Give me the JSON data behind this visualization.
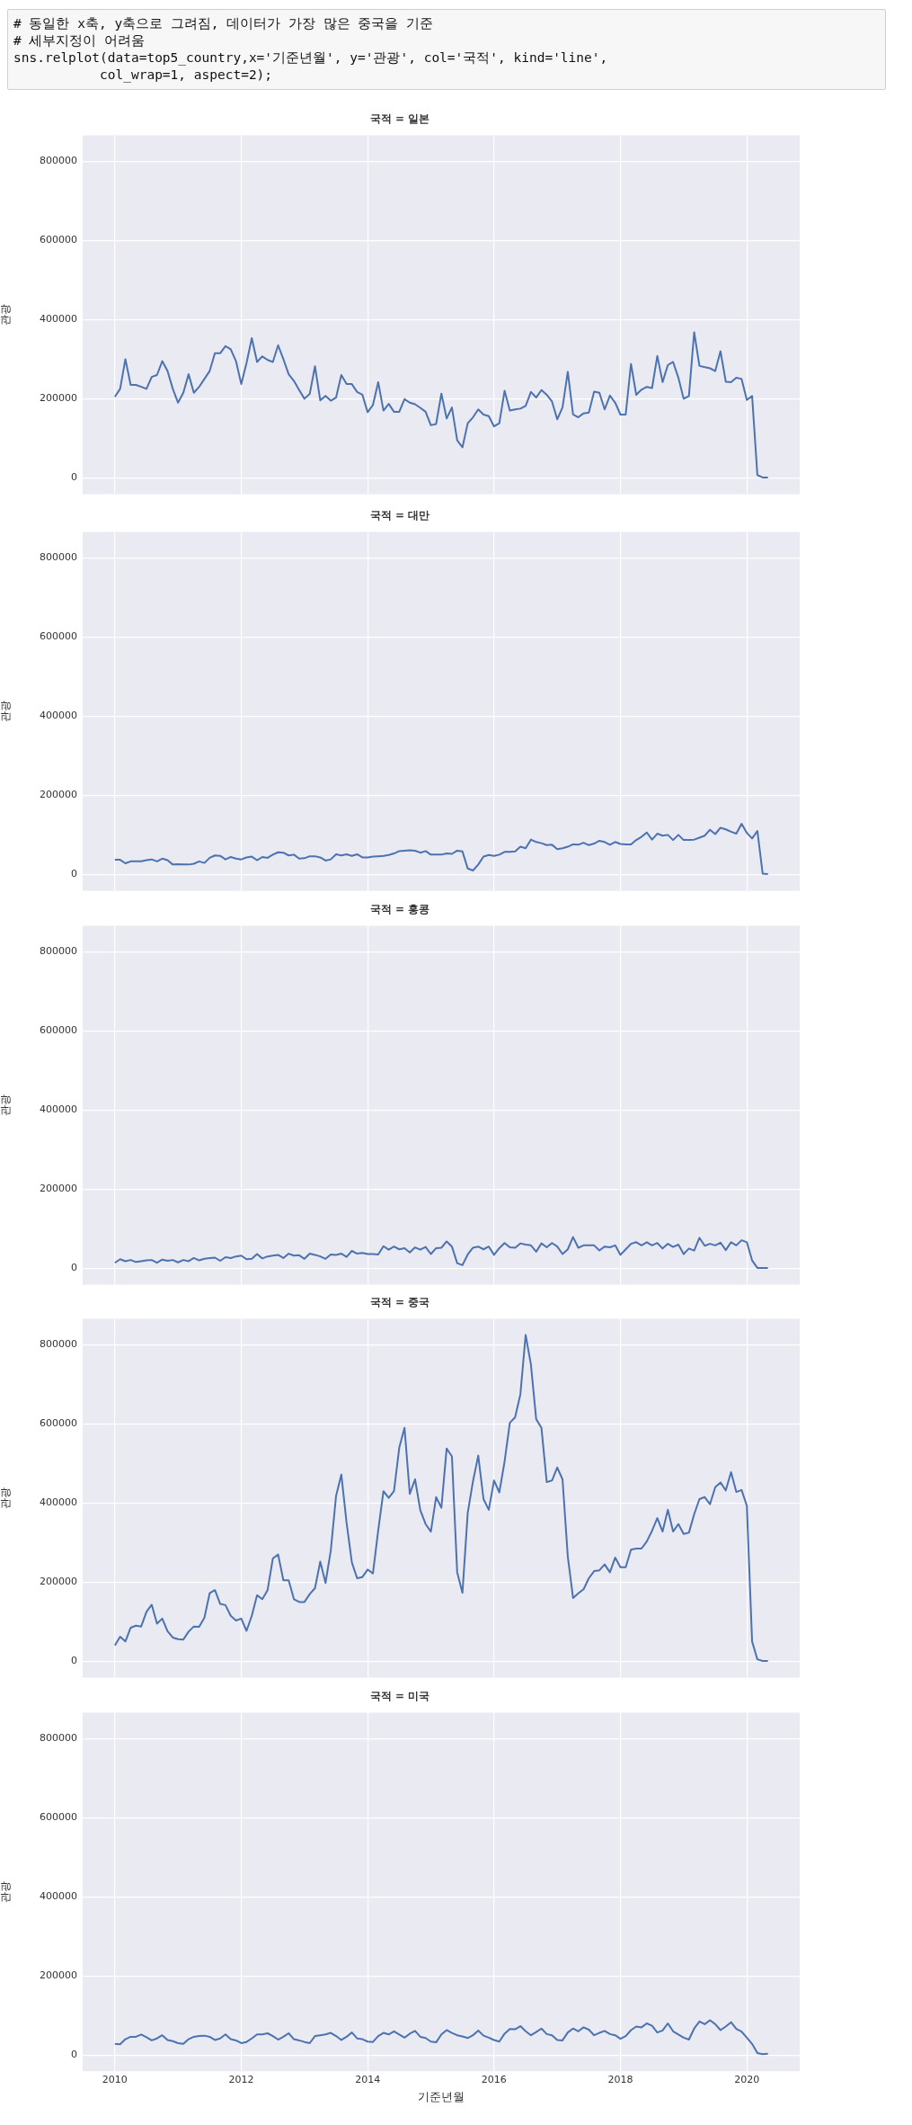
{
  "chart_data": [
    {
      "type": "line",
      "title": "국적 = 일본",
      "ylabel": "관광",
      "annotations": [
        "# 동일한 x축, y축으로 그려짐, 데이터가 가장 많은 중국을 기준",
        "# 세부지정이 어려움",
        "sns.relplot(data=top5_country,x='기준년월', y='관광', col='국적', kind='line',",
        "           col_wrap=1, aspect=2);"
      ],
      "x": [
        "2010-01",
        "2010-02",
        "2010-03",
        "2010-04",
        "2010-05",
        "2010-06",
        "2010-07",
        "2010-08",
        "2010-09",
        "2010-10",
        "2010-11",
        "2010-12",
        "2011-01",
        "2011-02",
        "2011-03",
        "2011-04",
        "2011-05",
        "2011-06",
        "2011-07",
        "2011-08",
        "2011-09",
        "2011-10",
        "2011-11",
        "2011-12",
        "2012-01",
        "2012-02",
        "2012-03",
        "2012-04",
        "2012-05",
        "2012-06",
        "2012-07",
        "2012-08",
        "2012-09",
        "2012-10",
        "2012-11",
        "2012-12",
        "2013-01",
        "2013-02",
        "2013-03",
        "2013-04",
        "2013-05",
        "2013-06",
        "2013-07",
        "2013-08",
        "2013-09",
        "2013-10",
        "2013-11",
        "2013-12",
        "2014-01",
        "2014-02",
        "2014-03",
        "2014-04",
        "2014-05",
        "2014-06",
        "2014-07",
        "2014-08",
        "2014-09",
        "2014-10",
        "2014-11",
        "2014-12",
        "2015-01",
        "2015-02",
        "2015-03",
        "2015-04",
        "2015-05",
        "2015-06",
        "2015-07",
        "2015-08",
        "2015-09",
        "2015-10",
        "2015-11",
        "2015-12",
        "2016-01",
        "2016-02",
        "2016-03",
        "2016-04",
        "2016-05",
        "2016-06",
        "2016-07",
        "2016-08",
        "2016-09",
        "2016-10",
        "2016-11",
        "2016-12",
        "2017-01",
        "2017-02",
        "2017-03",
        "2017-04",
        "2017-05",
        "2017-06",
        "2017-07",
        "2017-08",
        "2017-09",
        "2017-10",
        "2017-11",
        "2017-12",
        "2018-01",
        "2018-02",
        "2018-03",
        "2018-04",
        "2018-05",
        "2018-06",
        "2018-07",
        "2018-08",
        "2018-09",
        "2018-10",
        "2018-11",
        "2018-12",
        "2019-01",
        "2019-02",
        "2019-03",
        "2019-04",
        "2019-05",
        "2019-06",
        "2019-07",
        "2019-08",
        "2019-09",
        "2019-10",
        "2019-11",
        "2019-12",
        "2020-01",
        "2020-02",
        "2020-03",
        "2020-04",
        "2020-05"
      ],
      "series": [
        {
          "color": "#4c72b0",
          "values": [
            205000,
            225000,
            300000,
            235000,
            235000,
            230000,
            225000,
            255000,
            260000,
            295000,
            270000,
            225000,
            190000,
            215000,
            262000,
            215000,
            230000,
            250000,
            270000,
            315000,
            315000,
            333000,
            325000,
            295000,
            237000,
            290000,
            353000,
            293000,
            307000,
            298000,
            293000,
            335000,
            300000,
            262000,
            245000,
            222000,
            200000,
            212000,
            282000,
            196000,
            207000,
            195000,
            203000,
            260000,
            237000,
            237000,
            217000,
            210000,
            166000,
            184000,
            242000,
            170000,
            187000,
            167000,
            167000,
            199000,
            190000,
            186000,
            177000,
            167000,
            133000,
            136000,
            213000,
            150000,
            178000,
            95000,
            77000,
            138000,
            153000,
            173000,
            160000,
            156000,
            130000,
            138000,
            220000,
            170000,
            173000,
            175000,
            182000,
            217000,
            203000,
            222000,
            210000,
            193000,
            148000,
            178000,
            268000,
            160000,
            153000,
            163000,
            165000,
            218000,
            215000,
            173000,
            208000,
            190000,
            160000,
            160000,
            288000,
            210000,
            223000,
            230000,
            227000,
            308000,
            242000,
            285000,
            293000,
            253000,
            200000,
            207000,
            368000,
            283000,
            280000,
            277000,
            270000,
            320000,
            243000,
            242000,
            253000,
            250000,
            197000,
            207000,
            7000,
            1000,
            1000
          ]
        }
      ],
      "xlim": [
        "2009-06-28",
        "2020-11-02"
      ],
      "xticks": [
        "2010",
        "2012",
        "2014",
        "2016",
        "2018",
        "2020"
      ],
      "ylim": [
        -41000,
        866000
      ],
      "yticks": [
        0,
        200000,
        400000,
        600000,
        800000
      ],
      "grid": true,
      "tick_labels": "y"
    },
    {
      "type": "line",
      "title": "국적 = 대만",
      "ylabel": "관광",
      "x": [
        "2010-01",
        "2010-02",
        "2010-03",
        "2010-04",
        "2010-05",
        "2010-06",
        "2010-07",
        "2010-08",
        "2010-09",
        "2010-10",
        "2010-11",
        "2010-12",
        "2011-01",
        "2011-02",
        "2011-03",
        "2011-04",
        "2011-05",
        "2011-06",
        "2011-07",
        "2011-08",
        "2011-09",
        "2011-10",
        "2011-11",
        "2011-12",
        "2012-01",
        "2012-02",
        "2012-03",
        "2012-04",
        "2012-05",
        "2012-06",
        "2012-07",
        "2012-08",
        "2012-09",
        "2012-10",
        "2012-11",
        "2012-12",
        "2013-01",
        "2013-02",
        "2013-03",
        "2013-04",
        "2013-05",
        "2013-06",
        "2013-07",
        "2013-08",
        "2013-09",
        "2013-10",
        "2013-11",
        "2013-12",
        "2014-01",
        "2014-02",
        "2014-03",
        "2014-04",
        "2014-05",
        "2014-06",
        "2014-07",
        "2014-08",
        "2014-09",
        "2014-10",
        "2014-11",
        "2014-12",
        "2015-01",
        "2015-02",
        "2015-03",
        "2015-04",
        "2015-05",
        "2015-06",
        "2015-07",
        "2015-08",
        "2015-09",
        "2015-10",
        "2015-11",
        "2015-12",
        "2016-01",
        "2016-02",
        "2016-03",
        "2016-04",
        "2016-05",
        "2016-06",
        "2016-07",
        "2016-08",
        "2016-09",
        "2016-10",
        "2016-11",
        "2016-12",
        "2017-01",
        "2017-02",
        "2017-03",
        "2017-04",
        "2017-05",
        "2017-06",
        "2017-07",
        "2017-08",
        "2017-09",
        "2017-10",
        "2017-11",
        "2017-12",
        "2018-01",
        "2018-02",
        "2018-03",
        "2018-04",
        "2018-05",
        "2018-06",
        "2018-07",
        "2018-08",
        "2018-09",
        "2018-10",
        "2018-11",
        "2018-12",
        "2019-01",
        "2019-02",
        "2019-03",
        "2019-04",
        "2019-05",
        "2019-06",
        "2019-07",
        "2019-08",
        "2019-09",
        "2019-10",
        "2019-11",
        "2019-12",
        "2020-01",
        "2020-02",
        "2020-03",
        "2020-04",
        "2020-05"
      ],
      "series": [
        {
          "color": "#4c72b0",
          "values": [
            37000,
            37000,
            28000,
            33000,
            33000,
            33000,
            36000,
            38000,
            33000,
            40000,
            36000,
            25000,
            26000,
            25000,
            25000,
            27000,
            33000,
            29000,
            42000,
            48000,
            47000,
            38000,
            44000,
            40000,
            38000,
            43000,
            45000,
            36000,
            44000,
            42000,
            50000,
            56000,
            55000,
            48000,
            50000,
            40000,
            41000,
            46000,
            46000,
            43000,
            35000,
            38000,
            51000,
            48000,
            51000,
            47000,
            51000,
            43000,
            43000,
            45000,
            46000,
            47000,
            49000,
            53000,
            59000,
            60000,
            61000,
            60000,
            55000,
            59000,
            50000,
            50000,
            50000,
            53000,
            52000,
            60000,
            58000,
            15000,
            10000,
            25000,
            45000,
            49000,
            47000,
            50000,
            57000,
            57000,
            58000,
            70000,
            66000,
            88000,
            82000,
            79000,
            74000,
            75000,
            64000,
            66000,
            70000,
            76000,
            75000,
            80000,
            74000,
            78000,
            85000,
            82000,
            75000,
            82000,
            77000,
            76000,
            76000,
            87000,
            95000,
            106000,
            88000,
            103000,
            98000,
            100000,
            87000,
            100000,
            87000,
            87000,
            88000,
            93000,
            98000,
            113000,
            102000,
            118000,
            114000,
            108000,
            103000,
            128000,
            105000,
            91000,
            110000,
            2000,
            1000
          ]
        }
      ],
      "xlim": [
        "2009-06-28",
        "2020-11-02"
      ],
      "xticks": [
        "2010",
        "2012",
        "2014",
        "2016",
        "2018",
        "2020"
      ],
      "ylim": [
        -41000,
        866000
      ],
      "yticks": [
        0,
        200000,
        400000,
        600000,
        800000
      ],
      "grid": true,
      "tick_labels": "y"
    },
    {
      "type": "line",
      "title": "국적 = 홍콩",
      "ylabel": "관광",
      "x": [
        "2010-01",
        "2010-02",
        "2010-03",
        "2010-04",
        "2010-05",
        "2010-06",
        "2010-07",
        "2010-08",
        "2010-09",
        "2010-10",
        "2010-11",
        "2010-12",
        "2011-01",
        "2011-02",
        "2011-03",
        "2011-04",
        "2011-05",
        "2011-06",
        "2011-07",
        "2011-08",
        "2011-09",
        "2011-10",
        "2011-11",
        "2011-12",
        "2012-01",
        "2012-02",
        "2012-03",
        "2012-04",
        "2012-05",
        "2012-06",
        "2012-07",
        "2012-08",
        "2012-09",
        "2012-10",
        "2012-11",
        "2012-12",
        "2013-01",
        "2013-02",
        "2013-03",
        "2013-04",
        "2013-05",
        "2013-06",
        "2013-07",
        "2013-08",
        "2013-09",
        "2013-10",
        "2013-11",
        "2013-12",
        "2014-01",
        "2014-02",
        "2014-03",
        "2014-04",
        "2014-05",
        "2014-06",
        "2014-07",
        "2014-08",
        "2014-09",
        "2014-10",
        "2014-11",
        "2014-12",
        "2015-01",
        "2015-02",
        "2015-03",
        "2015-04",
        "2015-05",
        "2015-06",
        "2015-07",
        "2015-08",
        "2015-09",
        "2015-10",
        "2015-11",
        "2015-12",
        "2016-01",
        "2016-02",
        "2016-03",
        "2016-04",
        "2016-05",
        "2016-06",
        "2016-07",
        "2016-08",
        "2016-09",
        "2016-10",
        "2016-11",
        "2016-12",
        "2017-01",
        "2017-02",
        "2017-03",
        "2017-04",
        "2017-05",
        "2017-06",
        "2017-07",
        "2017-08",
        "2017-09",
        "2017-10",
        "2017-11",
        "2017-12",
        "2018-01",
        "2018-02",
        "2018-03",
        "2018-04",
        "2018-05",
        "2018-06",
        "2018-07",
        "2018-08",
        "2018-09",
        "2018-10",
        "2018-11",
        "2018-12",
        "2019-01",
        "2019-02",
        "2019-03",
        "2019-04",
        "2019-05",
        "2019-06",
        "2019-07",
        "2019-08",
        "2019-09",
        "2019-10",
        "2019-11",
        "2019-12",
        "2020-01",
        "2020-02",
        "2020-03",
        "2020-04",
        "2020-05"
      ],
      "series": [
        {
          "color": "#4c72b0",
          "values": [
            14000,
            23000,
            18000,
            21000,
            16000,
            18000,
            20000,
            21000,
            14000,
            22000,
            19000,
            21000,
            15000,
            21000,
            18000,
            26000,
            20000,
            24000,
            26000,
            27000,
            19000,
            28000,
            26000,
            30000,
            32000,
            23000,
            24000,
            36000,
            25000,
            30000,
            32000,
            34000,
            26000,
            37000,
            32000,
            33000,
            24000,
            37000,
            34000,
            30000,
            24000,
            35000,
            34000,
            37000,
            29000,
            44000,
            37000,
            39000,
            36000,
            36000,
            35000,
            56000,
            47000,
            55000,
            48000,
            51000,
            40000,
            53000,
            47000,
            54000,
            36000,
            51000,
            52000,
            68000,
            55000,
            13000,
            8000,
            35000,
            52000,
            55000,
            48000,
            55000,
            34000,
            51000,
            64000,
            53000,
            52000,
            63000,
            60000,
            58000,
            42000,
            63000,
            53000,
            64000,
            55000,
            36000,
            48000,
            79000,
            52000,
            58000,
            58000,
            58000,
            45000,
            55000,
            53000,
            58000,
            34000,
            48000,
            62000,
            66000,
            58000,
            66000,
            58000,
            64000,
            50000,
            62000,
            54000,
            60000,
            36000,
            50000,
            45000,
            77000,
            57000,
            62000,
            58000,
            65000,
            46000,
            66000,
            58000,
            71000,
            66000,
            20000,
            1000,
            1000,
            1000
          ]
        }
      ],
      "xlim": [
        "2009-06-28",
        "2020-11-02"
      ],
      "xticks": [
        "2010",
        "2012",
        "2014",
        "2016",
        "2018",
        "2020"
      ],
      "ylim": [
        -41000,
        866000
      ],
      "yticks": [
        0,
        200000,
        400000,
        600000,
        800000
      ],
      "grid": true,
      "tick_labels": "y"
    },
    {
      "type": "line",
      "title": "국적 = 중국",
      "ylabel": "관광",
      "x": [
        "2010-01",
        "2010-02",
        "2010-03",
        "2010-04",
        "2010-05",
        "2010-06",
        "2010-07",
        "2010-08",
        "2010-09",
        "2010-10",
        "2010-11",
        "2010-12",
        "2011-01",
        "2011-02",
        "2011-03",
        "2011-04",
        "2011-05",
        "2011-06",
        "2011-07",
        "2011-08",
        "2011-09",
        "2011-10",
        "2011-11",
        "2011-12",
        "2012-01",
        "2012-02",
        "2012-03",
        "2012-04",
        "2012-05",
        "2012-06",
        "2012-07",
        "2012-08",
        "2012-09",
        "2012-10",
        "2012-11",
        "2012-12",
        "2013-01",
        "2013-02",
        "2013-03",
        "2013-04",
        "2013-05",
        "2013-06",
        "2013-07",
        "2013-08",
        "2013-09",
        "2013-10",
        "2013-11",
        "2013-12",
        "2014-01",
        "2014-02",
        "2014-03",
        "2014-04",
        "2014-05",
        "2014-06",
        "2014-07",
        "2014-08",
        "2014-09",
        "2014-10",
        "2014-11",
        "2014-12",
        "2015-01",
        "2015-02",
        "2015-03",
        "2015-04",
        "2015-05",
        "2015-06",
        "2015-07",
        "2015-08",
        "2015-09",
        "2015-10",
        "2015-11",
        "2015-12",
        "2016-01",
        "2016-02",
        "2016-03",
        "2016-04",
        "2016-05",
        "2016-06",
        "2016-07",
        "2016-08",
        "2016-09",
        "2016-10",
        "2016-11",
        "2016-12",
        "2017-01",
        "2017-02",
        "2017-03",
        "2017-04",
        "2017-05",
        "2017-06",
        "2017-07",
        "2017-08",
        "2017-09",
        "2017-10",
        "2017-11",
        "2017-12",
        "2018-01",
        "2018-02",
        "2018-03",
        "2018-04",
        "2018-05",
        "2018-06",
        "2018-07",
        "2018-08",
        "2018-09",
        "2018-10",
        "2018-11",
        "2018-12",
        "2019-01",
        "2019-02",
        "2019-03",
        "2019-04",
        "2019-05",
        "2019-06",
        "2019-07",
        "2019-08",
        "2019-09",
        "2019-10",
        "2019-11",
        "2019-12",
        "2020-01",
        "2020-02",
        "2020-03",
        "2020-04",
        "2020-05"
      ],
      "series": [
        {
          "color": "#4c72b0",
          "values": [
            40000,
            62000,
            50000,
            85000,
            90000,
            88000,
            125000,
            143000,
            95000,
            108000,
            76000,
            60000,
            56000,
            55000,
            75000,
            88000,
            87000,
            110000,
            172000,
            180000,
            145000,
            142000,
            115000,
            103000,
            108000,
            77000,
            115000,
            167000,
            157000,
            180000,
            260000,
            270000,
            205000,
            205000,
            157000,
            150000,
            150000,
            170000,
            185000,
            252000,
            198000,
            280000,
            418000,
            472000,
            350000,
            250000,
            210000,
            213000,
            232000,
            222000,
            330000,
            430000,
            413000,
            430000,
            540000,
            590000,
            423000,
            460000,
            382000,
            347000,
            328000,
            415000,
            388000,
            538000,
            518000,
            225000,
            173000,
            375000,
            455000,
            520000,
            410000,
            383000,
            457000,
            427000,
            505000,
            603000,
            617000,
            675000,
            825000,
            750000,
            612000,
            590000,
            453000,
            457000,
            490000,
            460000,
            265000,
            160000,
            172000,
            182000,
            210000,
            228000,
            230000,
            245000,
            225000,
            262000,
            238000,
            238000,
            282000,
            285000,
            285000,
            303000,
            330000,
            362000,
            328000,
            383000,
            328000,
            347000,
            322000,
            325000,
            372000,
            410000,
            415000,
            397000,
            440000,
            452000,
            432000,
            478000,
            428000,
            433000,
            393000,
            50000,
            5000,
            1000,
            1000
          ]
        }
      ],
      "xlim": [
        "2009-06-28",
        "2020-11-02"
      ],
      "xticks": [
        "2010",
        "2012",
        "2014",
        "2016",
        "2018",
        "2020"
      ],
      "ylim": [
        -41000,
        866000
      ],
      "yticks": [
        0,
        200000,
        400000,
        600000,
        800000
      ],
      "grid": true,
      "tick_labels": "y"
    },
    {
      "type": "line",
      "title": "국적 = 미국",
      "xlabel": "기준년월",
      "ylabel": "관광",
      "x": [
        "2010-01",
        "2010-02",
        "2010-03",
        "2010-04",
        "2010-05",
        "2010-06",
        "2010-07",
        "2010-08",
        "2010-09",
        "2010-10",
        "2010-11",
        "2010-12",
        "2011-01",
        "2011-02",
        "2011-03",
        "2011-04",
        "2011-05",
        "2011-06",
        "2011-07",
        "2011-08",
        "2011-09",
        "2011-10",
        "2011-11",
        "2011-12",
        "2012-01",
        "2012-02",
        "2012-03",
        "2012-04",
        "2012-05",
        "2012-06",
        "2012-07",
        "2012-08",
        "2012-09",
        "2012-10",
        "2012-11",
        "2012-12",
        "2013-01",
        "2013-02",
        "2013-03",
        "2013-04",
        "2013-05",
        "2013-06",
        "2013-07",
        "2013-08",
        "2013-09",
        "2013-10",
        "2013-11",
        "2013-12",
        "2014-01",
        "2014-02",
        "2014-03",
        "2014-04",
        "2014-05",
        "2014-06",
        "2014-07",
        "2014-08",
        "2014-09",
        "2014-10",
        "2014-11",
        "2014-12",
        "2015-01",
        "2015-02",
        "2015-03",
        "2015-04",
        "2015-05",
        "2015-06",
        "2015-07",
        "2015-08",
        "2015-09",
        "2015-10",
        "2015-11",
        "2015-12",
        "2016-01",
        "2016-02",
        "2016-03",
        "2016-04",
        "2016-05",
        "2016-06",
        "2016-07",
        "2016-08",
        "2016-09",
        "2016-10",
        "2016-11",
        "2016-12",
        "2017-01",
        "2017-02",
        "2017-03",
        "2017-04",
        "2017-05",
        "2017-06",
        "2017-07",
        "2017-08",
        "2017-09",
        "2017-10",
        "2017-11",
        "2017-12",
        "2018-01",
        "2018-02",
        "2018-03",
        "2018-04",
        "2018-05",
        "2018-06",
        "2018-07",
        "2018-08",
        "2018-09",
        "2018-10",
        "2018-11",
        "2018-12",
        "2019-01",
        "2019-02",
        "2019-03",
        "2019-04",
        "2019-05",
        "2019-06",
        "2019-07",
        "2019-08",
        "2019-09",
        "2019-10",
        "2019-11",
        "2019-12",
        "2020-01",
        "2020-02",
        "2020-03",
        "2020-04",
        "2020-05"
      ],
      "series": [
        {
          "color": "#4c72b0",
          "values": [
            28000,
            27000,
            40000,
            46000,
            46000,
            52000,
            45000,
            37000,
            42000,
            50000,
            38000,
            35000,
            30000,
            28000,
            40000,
            46000,
            48000,
            49000,
            46000,
            38000,
            42000,
            52000,
            40000,
            37000,
            30000,
            33000,
            42000,
            52000,
            52000,
            55000,
            48000,
            39000,
            46000,
            55000,
            40000,
            37000,
            33000,
            30000,
            48000,
            50000,
            52000,
            56000,
            48000,
            38000,
            46000,
            57000,
            42000,
            40000,
            34000,
            33000,
            48000,
            56000,
            52000,
            60000,
            52000,
            44000,
            54000,
            61000,
            46000,
            43000,
            34000,
            32000,
            52000,
            63000,
            56000,
            50000,
            47000,
            43000,
            50000,
            62000,
            49000,
            44000,
            38000,
            34000,
            54000,
            66000,
            65000,
            73000,
            60000,
            50000,
            58000,
            67000,
            53000,
            50000,
            38000,
            37000,
            57000,
            67000,
            60000,
            70000,
            64000,
            50000,
            56000,
            61000,
            53000,
            50000,
            41000,
            48000,
            63000,
            72000,
            70000,
            80000,
            74000,
            57000,
            62000,
            80000,
            60000,
            52000,
            44000,
            39000,
            67000,
            85000,
            78000,
            88000,
            78000,
            63000,
            72000,
            83000,
            66000,
            59000,
            44000,
            28000,
            5000,
            2000,
            3000
          ]
        }
      ],
      "xlim": [
        "2009-06-28",
        "2020-11-02"
      ],
      "xticks": [
        "2010",
        "2012",
        "2014",
        "2016",
        "2018",
        "2020"
      ],
      "ylim": [
        -41000,
        866000
      ],
      "yticks": [
        0,
        200000,
        400000,
        600000,
        800000
      ],
      "grid": true
    }
  ]
}
